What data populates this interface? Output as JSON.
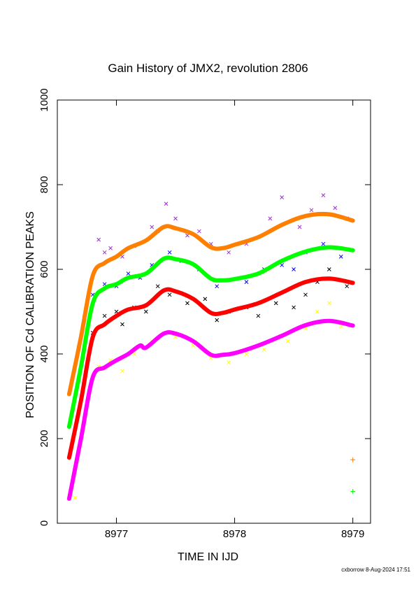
{
  "chart_data": {
    "type": "scatter",
    "title": "Gain History of JMX2, revolution 2806",
    "xlabel": "TIME IN IJD",
    "ylabel": "POSITION OF Cd CALIBRATION PEAKS",
    "xlim": [
      8976.5,
      8979.15
    ],
    "ylim": [
      0,
      1000
    ],
    "xticks": [
      8977,
      8978,
      8979
    ],
    "yticks": [
      0,
      200,
      400,
      600,
      800,
      1000
    ],
    "grid": false,
    "footer": "cxborrow  8-Aug-2024 17:51",
    "smoothed_series": [
      {
        "color": "#ff8000",
        "x": [
          8976.6,
          8976.7,
          8976.8,
          8976.9,
          8977.0,
          8977.1,
          8977.25,
          8977.4,
          8977.5,
          8977.65,
          8977.8,
          8977.9,
          8978.0,
          8978.2,
          8978.4,
          8978.6,
          8978.8,
          8979.0
        ],
        "y": [
          305,
          440,
          585,
          615,
          630,
          650,
          668,
          700,
          697,
          683,
          652,
          650,
          658,
          676,
          705,
          726,
          730,
          715
        ]
      },
      {
        "color": "#00ff00",
        "x": [
          8976.6,
          8976.7,
          8976.8,
          8976.9,
          8977.0,
          8977.1,
          8977.25,
          8977.4,
          8977.5,
          8977.65,
          8977.8,
          8977.9,
          8978.0,
          8978.2,
          8978.4,
          8978.6,
          8978.8,
          8979.0
        ],
        "y": [
          228,
          370,
          520,
          555,
          565,
          580,
          590,
          625,
          624,
          612,
          578,
          574,
          577,
          590,
          620,
          642,
          652,
          645
        ]
      },
      {
        "color": "#ff0000",
        "x": [
          8976.6,
          8976.7,
          8976.8,
          8976.9,
          8977.0,
          8977.1,
          8977.25,
          8977.4,
          8977.5,
          8977.65,
          8977.8,
          8977.9,
          8978.0,
          8978.2,
          8978.4,
          8978.6,
          8978.8,
          8979.0
        ],
        "y": [
          155,
          290,
          440,
          470,
          490,
          505,
          515,
          550,
          548,
          530,
          497,
          497,
          505,
          520,
          545,
          570,
          578,
          568
        ]
      },
      {
        "color": "#ff00ff",
        "x": [
          8976.6,
          8976.7,
          8976.8,
          8976.9,
          8977.0,
          8977.1,
          8977.2,
          8977.25,
          8977.4,
          8977.5,
          8977.65,
          8977.8,
          8977.9,
          8978.0,
          8978.2,
          8978.4,
          8978.6,
          8978.8,
          8979.0
        ],
        "y": [
          58,
          200,
          345,
          368,
          385,
          400,
          420,
          415,
          448,
          448,
          430,
          398,
          398,
          402,
          420,
          443,
          468,
          478,
          467
        ]
      }
    ],
    "scatter_series": [
      {
        "color": "#9b30d0",
        "x": [
          8976.85,
          8976.9,
          8976.95,
          8977.05,
          8977.15,
          8977.3,
          8977.35,
          8977.42,
          8977.5,
          8977.6,
          8977.7,
          8977.8,
          8977.95,
          8978.1,
          8978.3,
          8978.4,
          8978.55,
          8978.65,
          8978.75,
          8978.85,
          8978.95
        ],
        "y": [
          670,
          640,
          650,
          630,
          655,
          700,
          690,
          755,
          720,
          680,
          690,
          660,
          640,
          660,
          720,
          770,
          700,
          740,
          775,
          745,
          720
        ]
      },
      {
        "color": "#0000ff",
        "x": [
          8976.8,
          8976.9,
          8977.0,
          8977.1,
          8977.2,
          8977.3,
          8977.45,
          8977.55,
          8977.7,
          8977.85,
          8977.95,
          8978.1,
          8978.25,
          8978.4,
          8978.5,
          8978.6,
          8978.75,
          8978.9
        ],
        "y": [
          540,
          565,
          560,
          590,
          580,
          610,
          640,
          620,
          600,
          560,
          575,
          570,
          600,
          610,
          600,
          640,
          660,
          630
        ]
      },
      {
        "color": "#000000",
        "x": [
          8976.8,
          8976.9,
          8977.0,
          8977.05,
          8977.15,
          8977.25,
          8977.35,
          8977.45,
          8977.6,
          8977.75,
          8977.85,
          8977.95,
          8978.1,
          8978.2,
          8978.35,
          8978.5,
          8978.6,
          8978.7,
          8978.8,
          8978.95
        ],
        "y": [
          450,
          490,
          500,
          470,
          510,
          500,
          560,
          540,
          520,
          530,
          480,
          500,
          510,
          490,
          520,
          510,
          540,
          570,
          600,
          560
        ]
      },
      {
        "color": "#ffff00",
        "x": [
          8976.65,
          8976.75,
          8976.85,
          8976.95,
          8977.05,
          8977.15,
          8977.3,
          8977.5,
          8977.65,
          8977.8,
          8977.95,
          8978.1,
          8978.25,
          8978.45,
          8978.6,
          8978.7,
          8978.8,
          8978.9
        ],
        "y": [
          60,
          280,
          370,
          385,
          360,
          400,
          430,
          440,
          420,
          390,
          380,
          400,
          410,
          430,
          460,
          500,
          520,
          465
        ]
      }
    ],
    "markers": [
      {
        "color": "#ff8000",
        "x": 8979.0,
        "y": 150,
        "symbol": "+"
      },
      {
        "color": "#00ff00",
        "x": 8979.0,
        "y": 75,
        "symbol": "+"
      }
    ]
  }
}
